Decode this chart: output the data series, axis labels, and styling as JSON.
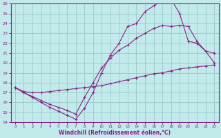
{
  "xlabel": "Windchill (Refroidissement éolien,°C)",
  "xlim": [
    -0.5,
    23.5
  ],
  "ylim": [
    14,
    26
  ],
  "xticks": [
    0,
    1,
    2,
    3,
    4,
    5,
    6,
    7,
    8,
    9,
    10,
    11,
    12,
    13,
    14,
    15,
    16,
    17,
    18,
    19,
    20,
    21,
    22,
    23
  ],
  "yticks": [
    14,
    15,
    16,
    17,
    18,
    19,
    20,
    21,
    22,
    23,
    24,
    25,
    26
  ],
  "bg_color": "#c2eaea",
  "grid_color": "#9dcece",
  "line_color": "#882288",
  "curve_bottom_x": [
    0,
    1,
    2,
    3,
    4,
    5,
    6,
    7,
    8,
    9,
    10,
    11,
    12,
    13,
    14,
    15,
    16,
    17,
    18,
    19,
    20,
    21,
    22,
    23
  ],
  "curve_bottom_y": [
    17.5,
    17.1,
    17.0,
    17.0,
    17.1,
    17.2,
    17.3,
    17.4,
    17.5,
    17.6,
    17.7,
    17.9,
    18.1,
    18.3,
    18.5,
    18.7,
    18.9,
    19.0,
    19.2,
    19.4,
    19.5,
    19.6,
    19.7,
    19.8
  ],
  "curve_mid_x": [
    0,
    1,
    2,
    3,
    4,
    5,
    6,
    7,
    8,
    9,
    10,
    11,
    12,
    13,
    14,
    15,
    16,
    17,
    18,
    19,
    20,
    21,
    22,
    23
  ],
  "curve_mid_y": [
    17.5,
    17.0,
    16.6,
    16.2,
    15.8,
    15.5,
    15.2,
    14.8,
    16.5,
    18.0,
    19.5,
    20.5,
    21.3,
    21.8,
    22.5,
    23.0,
    23.5,
    23.8,
    23.7,
    23.8,
    23.7,
    22.2,
    21.2,
    21.0
  ],
  "curve_top_x": [
    0,
    1,
    2,
    3,
    4,
    5,
    6,
    7,
    8,
    9,
    10,
    11,
    12,
    13,
    14,
    15,
    16,
    17,
    18,
    19,
    20,
    21,
    22,
    23
  ],
  "curve_top_y": [
    17.5,
    17.0,
    16.5,
    16.0,
    15.5,
    15.1,
    14.7,
    14.3,
    15.4,
    17.0,
    19.0,
    20.8,
    22.0,
    23.7,
    24.0,
    25.2,
    25.8,
    26.3,
    26.5,
    25.0,
    22.2,
    22.0,
    21.2,
    20.0
  ]
}
